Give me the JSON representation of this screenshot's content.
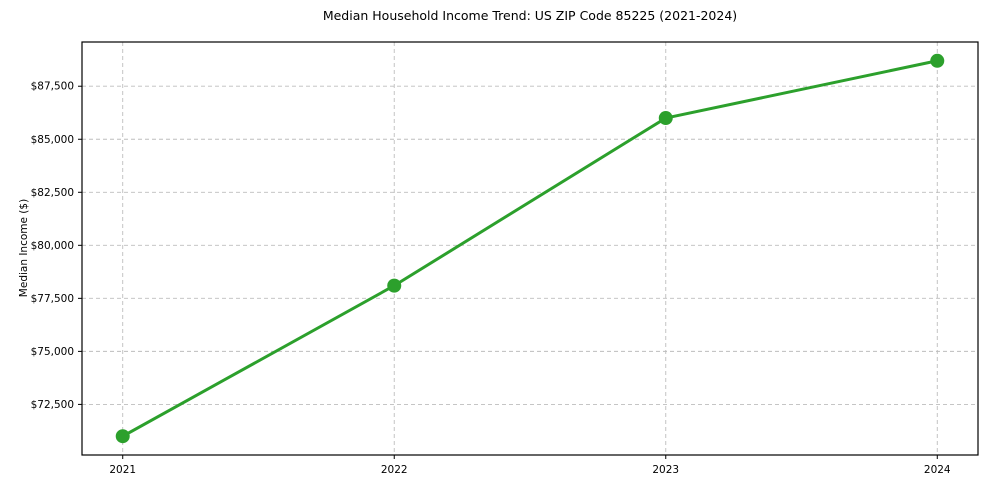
{
  "chart_data": {
    "type": "line",
    "title": "Median Household Income Trend: US ZIP Code 85225 (2021-2024)",
    "xlabel": "",
    "ylabel": "Median Income ($)",
    "x": [
      2021,
      2022,
      2023,
      2024
    ],
    "x_tick_labels": [
      "2021",
      "2022",
      "2023",
      "2024"
    ],
    "series": [
      {
        "name": "Median Household Income",
        "values": [
          71000,
          78100,
          86000,
          88700
        ]
      }
    ],
    "y_ticks": [
      72500,
      75000,
      77500,
      80000,
      82500,
      85000,
      87500
    ],
    "y_tick_labels": [
      "$72,500",
      "$75,000",
      "$77,500",
      "$80,000",
      "$82,500",
      "$85,000",
      "$87,500"
    ],
    "ylim": [
      70115,
      89585
    ],
    "grid": true,
    "grid_style": "dashed",
    "legend_position": "none",
    "colors": {
      "line": "#2ca02c",
      "marker": "#2ca02c",
      "grid": "#bdbdbd",
      "spine": "#000000",
      "text": "#000000",
      "background": "#ffffff"
    }
  }
}
